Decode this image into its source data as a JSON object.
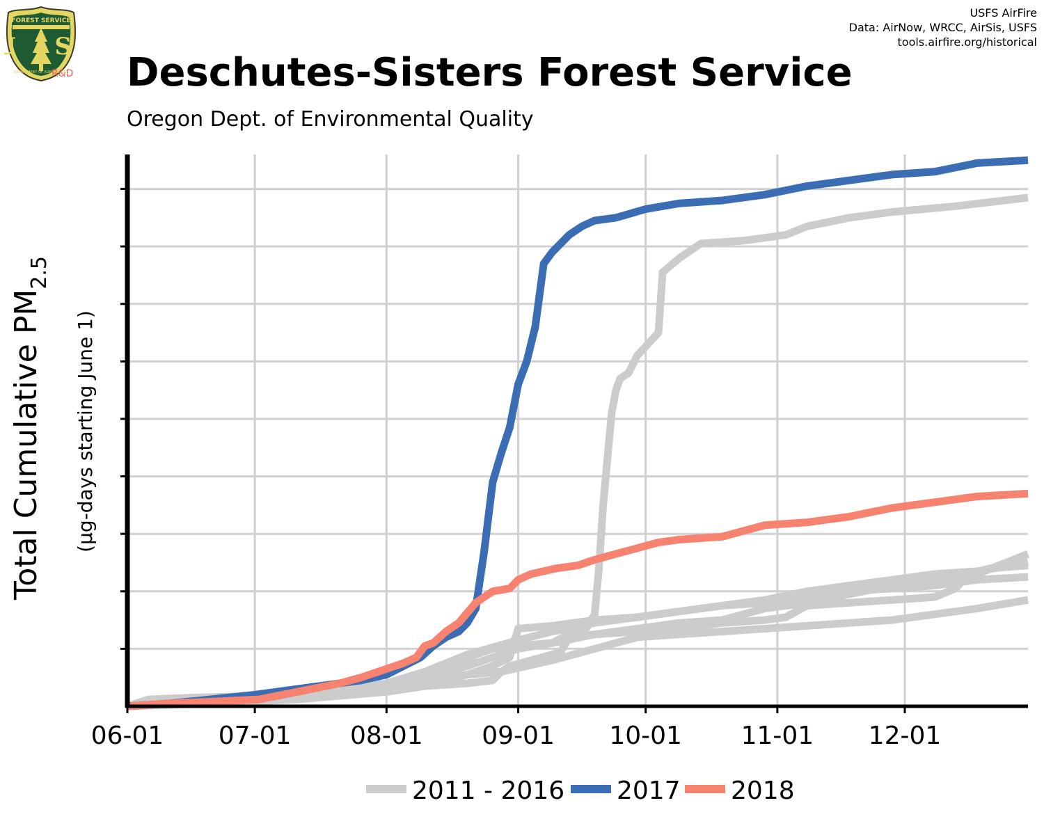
{
  "header": {
    "title": "Deschutes-Sisters Forest Service",
    "subtitle": "Oregon Dept. of Environmental Quality",
    "credit_lines": [
      "USFS AirFire",
      "Data: AirNow, WRCC, AirSis, USFS",
      "tools.airfire.org/historical"
    ],
    "logo_top_text": "FOREST SERVICE",
    "logo_letters": "U S",
    "logo_bottom_text": "DEPARTMENT OF AGRICULTURE",
    "logo_rd": "R&D"
  },
  "chart_data": {
    "type": "line",
    "ylabel_main": "Total Cumulative PM",
    "ylabel_subscript": "2.5",
    "ylabel_units": "(µg-days starting June 1)",
    "x_domain": [
      "06-01",
      "12-31"
    ],
    "x_tick_labels": [
      "06-01",
      "07-01",
      "08-01",
      "09-01",
      "10-01",
      "11-01",
      "12-01"
    ],
    "x_tick_days": [
      0,
      30,
      61,
      92,
      122,
      153,
      183
    ],
    "y_tick_count": 10,
    "ylim": [
      0,
      9.6
    ],
    "grid": true,
    "legend_position": "bottom",
    "colors": {
      "gray": "#cccccc",
      "blue": "#3a6db4",
      "salmon": "#f7826f",
      "axis": "#000000",
      "grid": "#d0d0d0"
    },
    "series": [
      {
        "name": "2011 - 2016",
        "role": "gray",
        "points": [
          [
            0,
            0
          ],
          [
            5,
            0.12
          ],
          [
            15,
            0.15
          ],
          [
            31,
            0.18
          ],
          [
            50,
            0.25
          ],
          [
            60,
            0.3
          ],
          [
            70,
            0.35
          ],
          [
            80,
            0.4
          ],
          [
            86,
            0.45
          ],
          [
            88,
            0.6
          ],
          [
            90,
            0.7
          ],
          [
            95,
            0.8
          ],
          [
            100,
            0.9
          ],
          [
            102,
            0.95
          ],
          [
            104,
            1.2
          ],
          [
            110,
            1.25
          ],
          [
            120,
            1.3
          ],
          [
            130,
            1.35
          ],
          [
            140,
            1.45
          ],
          [
            150,
            1.5
          ],
          [
            155,
            1.55
          ],
          [
            160,
            1.75
          ],
          [
            170,
            1.8
          ],
          [
            180,
            1.85
          ],
          [
            190,
            1.9
          ],
          [
            195,
            2.05
          ],
          [
            198,
            2.3
          ],
          [
            203,
            2.4
          ],
          [
            212,
            2.45
          ]
        ]
      },
      {
        "name": "",
        "role": "gray",
        "points": [
          [
            0,
            0
          ],
          [
            20,
            0.1
          ],
          [
            40,
            0.2
          ],
          [
            61,
            0.3
          ],
          [
            70,
            0.45
          ],
          [
            80,
            0.55
          ],
          [
            88,
            0.6
          ],
          [
            100,
            0.8
          ],
          [
            110,
            1.0
          ],
          [
            115,
            1.1
          ],
          [
            120,
            1.2
          ],
          [
            130,
            1.25
          ],
          [
            140,
            1.3
          ],
          [
            150,
            1.35
          ],
          [
            160,
            1.4
          ],
          [
            170,
            1.45
          ],
          [
            180,
            1.5
          ],
          [
            190,
            1.6
          ],
          [
            200,
            1.7
          ],
          [
            212,
            1.85
          ]
        ]
      },
      {
        "name": "",
        "role": "gray",
        "points": [
          [
            0,
            0
          ],
          [
            20,
            0.08
          ],
          [
            40,
            0.18
          ],
          [
            61,
            0.35
          ],
          [
            70,
            0.55
          ],
          [
            78,
            0.75
          ],
          [
            82,
            0.9
          ],
          [
            86,
            1.0
          ],
          [
            92,
            1.05
          ],
          [
            100,
            1.1
          ],
          [
            105,
            1.3
          ],
          [
            108,
            1.35
          ],
          [
            110,
            1.6
          ],
          [
            111,
            2.4
          ],
          [
            112,
            3.5
          ],
          [
            113,
            4.3
          ],
          [
            114,
            5.1
          ],
          [
            115,
            5.5
          ],
          [
            116,
            5.7
          ],
          [
            118,
            5.8
          ],
          [
            120,
            6.1
          ],
          [
            125,
            6.5
          ],
          [
            126,
            7.55
          ],
          [
            130,
            7.8
          ],
          [
            135,
            8.05
          ],
          [
            145,
            8.1
          ],
          [
            155,
            8.2
          ],
          [
            160,
            8.35
          ],
          [
            170,
            8.5
          ],
          [
            180,
            8.6
          ],
          [
            195,
            8.7
          ],
          [
            212,
            8.85
          ]
        ]
      },
      {
        "name": "",
        "role": "gray",
        "points": [
          [
            0,
            0
          ],
          [
            20,
            0.1
          ],
          [
            40,
            0.2
          ],
          [
            61,
            0.4
          ],
          [
            70,
            0.6
          ],
          [
            80,
            0.9
          ],
          [
            92,
            1.15
          ],
          [
            100,
            1.3
          ],
          [
            110,
            1.45
          ],
          [
            120,
            1.55
          ],
          [
            130,
            1.65
          ],
          [
            140,
            1.75
          ],
          [
            150,
            1.85
          ],
          [
            160,
            2.0
          ],
          [
            170,
            2.1
          ],
          [
            180,
            2.2
          ],
          [
            190,
            2.3
          ],
          [
            200,
            2.35
          ],
          [
            212,
            2.5
          ]
        ]
      },
      {
        "name": "",
        "role": "gray",
        "points": [
          [
            0,
            0
          ],
          [
            20,
            0.08
          ],
          [
            40,
            0.15
          ],
          [
            61,
            0.35
          ],
          [
            70,
            0.5
          ],
          [
            80,
            0.7
          ],
          [
            92,
            1.0
          ],
          [
            100,
            1.1
          ],
          [
            110,
            1.25
          ],
          [
            120,
            1.35
          ],
          [
            130,
            1.45
          ],
          [
            140,
            1.5
          ],
          [
            150,
            1.7
          ],
          [
            160,
            1.8
          ],
          [
            170,
            1.95
          ],
          [
            180,
            2.1
          ],
          [
            190,
            2.2
          ],
          [
            200,
            2.3
          ],
          [
            212,
            2.65
          ]
        ]
      },
      {
        "name": "",
        "role": "gray",
        "points": [
          [
            0,
            0
          ],
          [
            20,
            0.05
          ],
          [
            40,
            0.12
          ],
          [
            61,
            0.25
          ],
          [
            70,
            0.35
          ],
          [
            80,
            0.55
          ],
          [
            86,
            0.7
          ],
          [
            90,
            0.85
          ],
          [
            92,
            1.35
          ],
          [
            100,
            1.4
          ],
          [
            110,
            1.5
          ],
          [
            120,
            1.55
          ],
          [
            130,
            1.65
          ],
          [
            140,
            1.75
          ],
          [
            150,
            1.8
          ],
          [
            160,
            1.9
          ],
          [
            170,
            2.0
          ],
          [
            180,
            2.05
          ],
          [
            190,
            2.1
          ],
          [
            200,
            2.2
          ],
          [
            212,
            2.25
          ]
        ]
      },
      {
        "name": "2017",
        "role": "blue",
        "points": [
          [
            0,
            0
          ],
          [
            10,
            0.05
          ],
          [
            17,
            0.1
          ],
          [
            30,
            0.2
          ],
          [
            45,
            0.35
          ],
          [
            55,
            0.45
          ],
          [
            61,
            0.55
          ],
          [
            65,
            0.7
          ],
          [
            69,
            0.85
          ],
          [
            72,
            1.05
          ],
          [
            75,
            1.2
          ],
          [
            78,
            1.3
          ],
          [
            80,
            1.45
          ],
          [
            82,
            1.7
          ],
          [
            84,
            2.7
          ],
          [
            86,
            3.9
          ],
          [
            88,
            4.4
          ],
          [
            90,
            4.85
          ],
          [
            92,
            5.6
          ],
          [
            94,
            6.0
          ],
          [
            96,
            6.6
          ],
          [
            98,
            7.7
          ],
          [
            100,
            7.9
          ],
          [
            102,
            8.05
          ],
          [
            104,
            8.2
          ],
          [
            107,
            8.35
          ],
          [
            110,
            8.45
          ],
          [
            115,
            8.5
          ],
          [
            122,
            8.65
          ],
          [
            130,
            8.75
          ],
          [
            140,
            8.8
          ],
          [
            150,
            8.9
          ],
          [
            160,
            9.05
          ],
          [
            170,
            9.15
          ],
          [
            180,
            9.25
          ],
          [
            190,
            9.3
          ],
          [
            200,
            9.45
          ],
          [
            212,
            9.5
          ]
        ]
      },
      {
        "name": "2018",
        "role": "salmon",
        "points": [
          [
            0,
            0
          ],
          [
            10,
            0.05
          ],
          [
            20,
            0.08
          ],
          [
            31,
            0.12
          ],
          [
            40,
            0.25
          ],
          [
            50,
            0.4
          ],
          [
            55,
            0.5
          ],
          [
            61,
            0.65
          ],
          [
            65,
            0.75
          ],
          [
            68,
            0.85
          ],
          [
            70,
            1.05
          ],
          [
            72,
            1.1
          ],
          [
            75,
            1.3
          ],
          [
            78,
            1.45
          ],
          [
            82,
            1.8
          ],
          [
            86,
            2.0
          ],
          [
            90,
            2.05
          ],
          [
            92,
            2.2
          ],
          [
            95,
            2.3
          ],
          [
            98,
            2.35
          ],
          [
            101,
            2.4
          ],
          [
            106,
            2.45
          ],
          [
            110,
            2.55
          ],
          [
            115,
            2.65
          ],
          [
            120,
            2.75
          ],
          [
            125,
            2.85
          ],
          [
            130,
            2.9
          ],
          [
            140,
            2.95
          ],
          [
            145,
            3.05
          ],
          [
            150,
            3.15
          ],
          [
            160,
            3.2
          ],
          [
            170,
            3.3
          ],
          [
            180,
            3.45
          ],
          [
            190,
            3.55
          ],
          [
            200,
            3.65
          ],
          [
            212,
            3.7
          ]
        ]
      }
    ]
  }
}
